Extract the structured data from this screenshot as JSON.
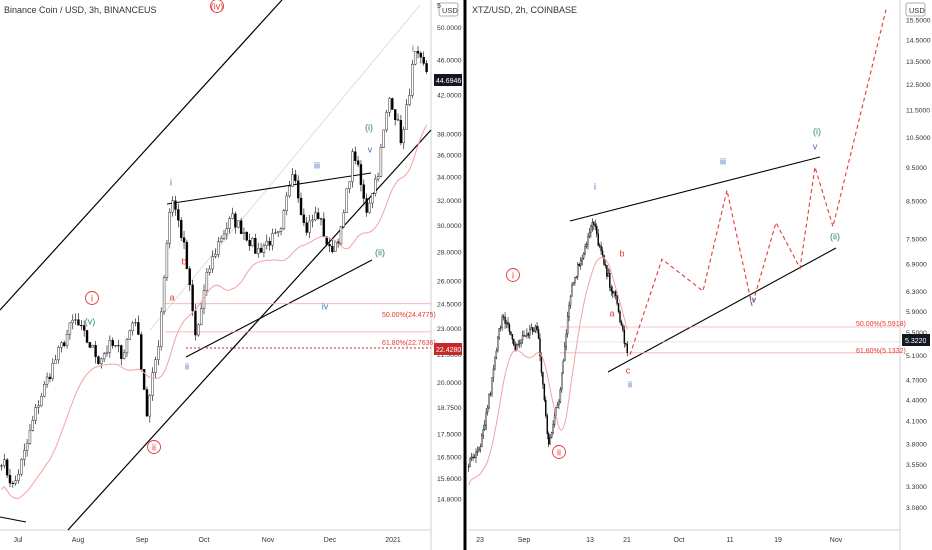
{
  "colors": {
    "wave_red": "#e53935",
    "wave_blue": "#3f6fc4",
    "wave_green": "#2e8b57",
    "ma_line": "#f4a3a3",
    "trend_line": "#000000",
    "projection": "#e53935",
    "price_badge_dark": "#131722",
    "price_badge_red": "#c62828",
    "fib_line": "#f3b1b1",
    "axis_text": "#333333"
  },
  "chart_data": [
    {
      "type": "line",
      "title": "Binance Coin / USD, 3h, BINANCEUS",
      "currency_badge": "USD",
      "x_tick_labels": [
        "Jul",
        "Aug",
        "Sep",
        "Oct",
        "Nov",
        "Dec",
        "2021"
      ],
      "y_tick_labels": [
        "50.0000",
        "46.0000",
        "42.0000",
        "38.0000",
        "36.0000",
        "34.0000",
        "32.0000",
        "30.0000",
        "28.0000",
        "26.0000",
        "24.5000",
        "23.0000",
        "21.5000",
        "20.0000",
        "18.7500",
        "17.5000",
        "16.5000",
        "15.6000",
        "14.8000"
      ],
      "y_axis_top_cut": "5",
      "last_price": "44.6946",
      "marker_price": "22.4280",
      "fib_levels": [
        {
          "label": "50.00%(24.4775)",
          "value": 24.4775
        },
        {
          "label": "61.80%(22.7636)",
          "value": 22.7636
        }
      ],
      "price_path": [
        {
          "date": "Jul",
          "price": 16.4
        },
        {
          "date": "Jul",
          "price": 15.2
        },
        {
          "date": "Jul",
          "price": 16.8
        },
        {
          "date": "Jul",
          "price": 18.9
        },
        {
          "date": "Aug",
          "price": 20.5
        },
        {
          "date": "Aug",
          "price": 22.0
        },
        {
          "date": "Aug",
          "price": 23.5
        },
        {
          "date": "Aug",
          "price": 22.3
        },
        {
          "date": "Aug",
          "price": 21.2
        },
        {
          "date": "Aug",
          "price": 22.0
        },
        {
          "date": "Sep",
          "price": 21.5
        },
        {
          "date": "Sep",
          "price": 23.8
        },
        {
          "date": "Sep",
          "price": 18.3
        },
        {
          "date": "Sep",
          "price": 22.5
        },
        {
          "date": "Sep",
          "price": 32.5
        },
        {
          "date": "Sep",
          "price": 28.5
        },
        {
          "date": "Sep",
          "price": 22.3
        },
        {
          "date": "Oct",
          "price": 26.5
        },
        {
          "date": "Oct",
          "price": 29.0
        },
        {
          "date": "Oct",
          "price": 30.5
        },
        {
          "date": "Oct",
          "price": 29.5
        },
        {
          "date": "Nov",
          "price": 28.0
        },
        {
          "date": "Nov",
          "price": 28.8
        },
        {
          "date": "Nov",
          "price": 29.2
        },
        {
          "date": "Nov",
          "price": 35.0
        },
        {
          "date": "Nov",
          "price": 29.5
        },
        {
          "date": "Dec",
          "price": 31.0
        },
        {
          "date": "Dec",
          "price": 28.0
        },
        {
          "date": "Dec",
          "price": 29.5
        },
        {
          "date": "Dec",
          "price": 36.5
        },
        {
          "date": "Dec",
          "price": 31.0
        },
        {
          "date": "Dec",
          "price": 34.5
        },
        {
          "date": "2021",
          "price": 42.0
        },
        {
          "date": "2021",
          "price": 37.0
        },
        {
          "date": "2021",
          "price": 46.5
        },
        {
          "date": "2021",
          "price": 44.69
        }
      ],
      "wave_labels": [
        {
          "text": "(iv)",
          "color": "red",
          "circled": true
        },
        {
          "text": "i",
          "color": "blue"
        },
        {
          "text": "iii",
          "color": "blue"
        },
        {
          "text": "i",
          "color": "blue"
        },
        {
          "text": "(i)",
          "color": "green"
        },
        {
          "text": "v",
          "color": "blue"
        },
        {
          "text": "b",
          "color": "red"
        },
        {
          "text": "a",
          "color": "red"
        },
        {
          "text": "(ii)",
          "color": "green"
        },
        {
          "text": "iv",
          "color": "blue"
        },
        {
          "text": "(v)",
          "color": "green"
        },
        {
          "text": "i",
          "color": "red",
          "circled": true
        },
        {
          "text": "ii",
          "color": "blue"
        },
        {
          "text": "ii",
          "color": "red",
          "circled": true
        }
      ]
    },
    {
      "type": "line",
      "title": "XTZ/USD, 2h, COINBASE",
      "currency_badge": "USD",
      "x_tick_labels": [
        "23",
        "Sep",
        "13",
        "21",
        "Oct",
        "11",
        "19",
        "Nov"
      ],
      "y_tick_labels": [
        "15.5000",
        "14.5000",
        "13.5000",
        "12.5000",
        "11.5000",
        "10.5000",
        "9.5000",
        "8.5000",
        "7.5000",
        "6.9000",
        "6.3000",
        "5.9000",
        "5.5000",
        "5.1000",
        "4.7000",
        "4.4000",
        "4.1000",
        "3.8000",
        "3.5500",
        "3.3000",
        "3.0800"
      ],
      "last_price": "5.3220",
      "fib_levels": [
        {
          "label": "50.00%(5.5918)",
          "value": 5.5918
        },
        {
          "label": "61.80%(5.1332)",
          "value": 5.1332
        }
      ],
      "price_path": [
        {
          "date": "23",
          "price": 3.55
        },
        {
          "date": "23",
          "price": 3.7
        },
        {
          "date": "Sep",
          "price": 4.6
        },
        {
          "date": "Sep",
          "price": 5.9
        },
        {
          "date": "Sep",
          "price": 5.2
        },
        {
          "date": "Sep",
          "price": 5.45
        },
        {
          "date": "Sep",
          "price": 5.6
        },
        {
          "date": "Sep",
          "price": 3.8
        },
        {
          "date": "Sep",
          "price": 4.4
        },
        {
          "date": "13",
          "price": 6.3
        },
        {
          "date": "13",
          "price": 7.1
        },
        {
          "date": "13",
          "price": 7.9
        },
        {
          "date": "13",
          "price": 6.8
        },
        {
          "date": "21",
          "price": 6.1
        },
        {
          "date": "21",
          "price": 5.1
        }
      ],
      "projection_path": [
        {
          "label": "ii",
          "price": 5.1
        },
        {
          "label": "",
          "price": 7.0
        },
        {
          "label": "",
          "price": 6.3
        },
        {
          "label": "iii",
          "price": 8.8
        },
        {
          "label": "iv",
          "price": 6.0
        },
        {
          "label": "",
          "price": 7.9
        },
        {
          "label": "",
          "price": 6.8
        },
        {
          "label": "v",
          "price": 9.5
        },
        {
          "label": "(ii)",
          "price": 7.8
        },
        {
          "label": "",
          "price": 16.0
        }
      ],
      "wave_labels": [
        {
          "text": "i",
          "color": "blue"
        },
        {
          "text": "iii",
          "color": "blue"
        },
        {
          "text": "(i)",
          "color": "green"
        },
        {
          "text": "v",
          "color": "blue"
        },
        {
          "text": "(ii)",
          "color": "green"
        },
        {
          "text": "b",
          "color": "red"
        },
        {
          "text": "a",
          "color": "red"
        },
        {
          "text": "iv",
          "color": "blue"
        },
        {
          "text": "c",
          "color": "red"
        },
        {
          "text": "ii",
          "color": "blue"
        },
        {
          "text": "i",
          "color": "red",
          "circled": true
        },
        {
          "text": "ii",
          "color": "red",
          "circled": true
        }
      ]
    }
  ]
}
